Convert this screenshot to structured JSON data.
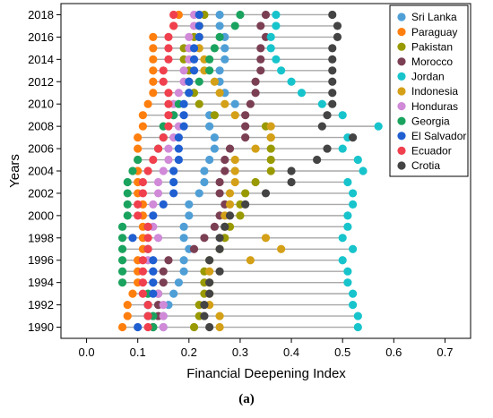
{
  "caption": "(a)",
  "chart_data": {
    "type": "scatter",
    "xlabel": "Financial Deepening Index",
    "ylabel": "Years",
    "xlim": [
      -0.05,
      0.75
    ],
    "ylim": [
      1989,
      2019
    ],
    "xticks": [
      0.0,
      0.1,
      0.2,
      0.3,
      0.4,
      0.5,
      0.6,
      0.7
    ],
    "yticks": [
      1990,
      1992,
      1994,
      1996,
      1998,
      2000,
      2002,
      2004,
      2006,
      2008,
      2010,
      2012,
      2014,
      2016,
      2018
    ],
    "legend_position": "top-right",
    "dumbbell_lines": true,
    "line_color": "#a8a8a8",
    "years": [
      1990,
      1991,
      1992,
      1993,
      1994,
      1995,
      1996,
      1997,
      1998,
      1999,
      2000,
      2001,
      2002,
      2003,
      2004,
      2005,
      2006,
      2007,
      2008,
      2009,
      2010,
      2011,
      2012,
      2013,
      2014,
      2015,
      2016,
      2017,
      2018
    ],
    "series": [
      {
        "name": "Sri Lanka",
        "color": "#4f9fd6",
        "values": [
          0.15,
          0.15,
          0.16,
          0.17,
          0.18,
          0.19,
          0.19,
          0.2,
          0.19,
          0.19,
          0.2,
          0.2,
          0.22,
          0.23,
          0.23,
          0.24,
          0.25,
          0.25,
          0.24,
          0.24,
          0.29,
          0.27,
          0.26,
          0.26,
          0.27,
          0.27,
          0.27,
          0.26,
          0.26
        ]
      },
      {
        "name": "Paraguay",
        "color": "#ff7f0e",
        "values": [
          0.07,
          0.08,
          0.08,
          0.09,
          0.1,
          0.1,
          0.1,
          0.11,
          0.11,
          0.11,
          0.11,
          0.11,
          0.1,
          0.1,
          0.1,
          0.1,
          0.1,
          0.1,
          0.11,
          0.11,
          0.12,
          0.13,
          0.13,
          0.13,
          0.13,
          0.13,
          0.13,
          0.17,
          0.18
        ]
      },
      {
        "name": "Pakistan",
        "color": "#999900",
        "values": [
          0.21,
          0.22,
          0.22,
          0.23,
          0.23,
          0.23,
          0.24,
          0.26,
          0.27,
          0.28,
          0.3,
          0.3,
          0.31,
          0.33,
          0.36,
          0.36,
          0.36,
          0.36,
          0.35,
          0.25,
          0.22,
          0.21,
          0.2,
          0.2,
          0.19,
          0.19,
          0.21,
          0.22,
          0.23
        ]
      },
      {
        "name": "Morocco",
        "color": "#7b3f54",
        "values": [
          0.13,
          0.14,
          0.14,
          0.14,
          0.15,
          0.15,
          0.16,
          0.21,
          0.23,
          0.25,
          0.26,
          0.27,
          0.26,
          0.26,
          0.27,
          0.27,
          0.28,
          0.31,
          0.31,
          0.31,
          0.32,
          0.33,
          0.33,
          0.34,
          0.34,
          0.34,
          0.35,
          0.34,
          0.35
        ]
      },
      {
        "name": "Jordan",
        "color": "#17c4cc",
        "values": [
          0.53,
          0.53,
          0.52,
          0.52,
          0.51,
          0.51,
          0.5,
          0.52,
          0.5,
          0.51,
          0.51,
          0.52,
          0.52,
          0.51,
          0.54,
          0.53,
          0.5,
          0.51,
          0.57,
          0.5,
          0.46,
          0.42,
          0.4,
          0.38,
          0.37,
          0.36,
          0.36,
          0.37,
          0.37
        ]
      },
      {
        "name": "Indonesia",
        "color": "#d4a017",
        "values": [
          0.26,
          0.26,
          0.24,
          0.24,
          0.24,
          0.24,
          0.32,
          0.38,
          0.35,
          0.27,
          0.27,
          0.28,
          0.28,
          0.29,
          0.29,
          0.29,
          0.33,
          0.36,
          0.36,
          0.29,
          0.27,
          0.26,
          0.25,
          0.23,
          0.23,
          0.22,
          0.22,
          0.22,
          0.22
        ]
      },
      {
        "name": "Honduras",
        "color": "#d08ad8",
        "values": [
          0.15,
          0.15,
          0.15,
          0.14,
          0.13,
          0.13,
          0.12,
          0.12,
          0.14,
          0.13,
          0.13,
          0.13,
          0.14,
          0.14,
          0.15,
          0.16,
          0.16,
          0.17,
          0.18,
          0.17,
          0.17,
          0.18,
          0.19,
          0.19,
          0.2,
          0.2,
          0.2,
          0.21,
          0.21
        ]
      },
      {
        "name": "Georgia",
        "color": "#1aa35e",
        "values": [
          0.13,
          0.13,
          0.12,
          0.12,
          0.07,
          0.07,
          0.07,
          0.07,
          0.07,
          0.07,
          0.08,
          0.08,
          0.08,
          0.08,
          0.09,
          0.1,
          0.14,
          0.15,
          0.15,
          0.17,
          0.18,
          0.2,
          0.22,
          0.24,
          0.24,
          0.25,
          0.26,
          0.29,
          0.3
        ]
      },
      {
        "name": "El Salvador",
        "color": "#1f5fd1",
        "values": [
          0.1,
          0.12,
          0.12,
          0.13,
          0.13,
          0.13,
          0.13,
          0.12,
          0.09,
          0.12,
          0.13,
          0.15,
          0.17,
          0.17,
          0.17,
          0.18,
          0.18,
          0.18,
          0.19,
          0.19,
          0.19,
          0.2,
          0.2,
          0.21,
          0.21,
          0.21,
          0.22,
          0.22,
          0.22
        ]
      },
      {
        "name": "Ecuador",
        "color": "#f0404e",
        "values": [
          0.12,
          0.12,
          0.12,
          0.11,
          0.11,
          0.11,
          0.11,
          0.12,
          0.12,
          0.12,
          0.1,
          0.1,
          0.11,
          0.11,
          0.12,
          0.13,
          0.14,
          0.15,
          0.16,
          0.16,
          0.16,
          0.16,
          0.15,
          0.15,
          0.16,
          0.16,
          0.16,
          0.17,
          0.17
        ]
      },
      {
        "name": "Crotia",
        "color": "#444444",
        "values": [
          0.24,
          0.23,
          0.23,
          0.24,
          0.24,
          0.26,
          0.24,
          0.26,
          0.26,
          0.27,
          0.28,
          0.31,
          0.35,
          0.4,
          0.4,
          0.45,
          0.47,
          0.52,
          0.46,
          0.47,
          0.48,
          0.48,
          0.48,
          0.48,
          0.48,
          0.48,
          0.49,
          0.49,
          0.48
        ]
      }
    ]
  }
}
